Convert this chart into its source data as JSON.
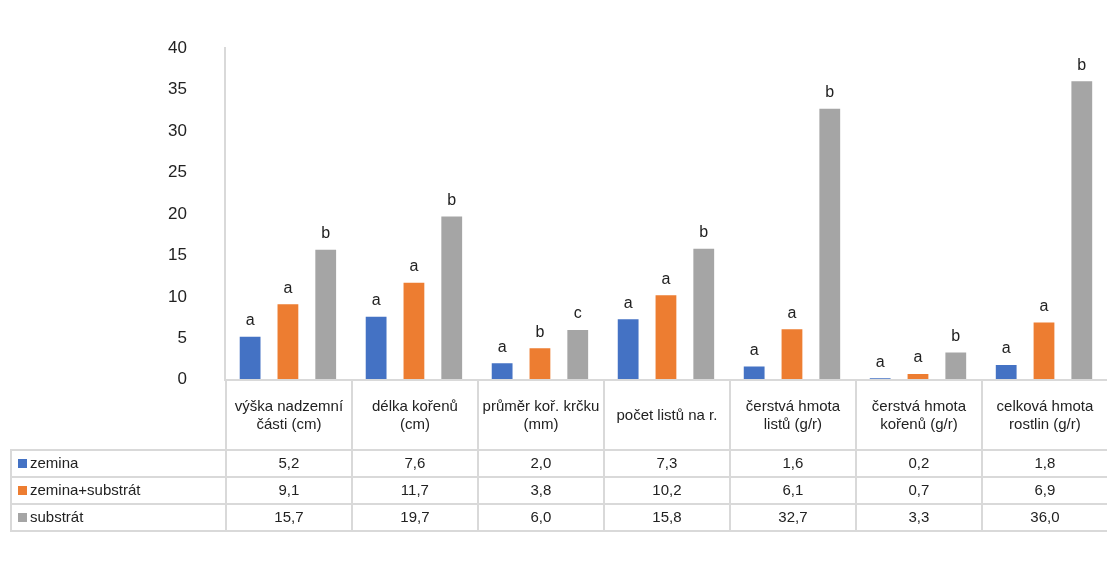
{
  "chart_data": {
    "type": "bar",
    "categories": [
      "výška nadzemní části (cm)",
      "délka kořenů (cm)",
      "průměr koř. krčku (mm)",
      "počet listů na r.",
      "čerstvá hmota listů (g/r)",
      "čerstvá hmota kořenů (g/r)",
      "celková hmota rostlin (g/r)"
    ],
    "series": [
      {
        "name": "zemina",
        "color": "#4472c4",
        "values": [
          5.2,
          7.6,
          2.0,
          7.3,
          1.6,
          0.2,
          1.8
        ],
        "value_labels": [
          "5,2",
          "7,6",
          "2,0",
          "7,3",
          "1,6",
          "0,2",
          "1,8"
        ]
      },
      {
        "name": "zemina+substrát",
        "color": "#ed7d31",
        "values": [
          9.1,
          11.7,
          3.8,
          10.2,
          6.1,
          0.7,
          6.9
        ],
        "value_labels": [
          "9,1",
          "11,7",
          "3,8",
          "10,2",
          "6,1",
          "0,7",
          "6,9"
        ]
      },
      {
        "name": "substrát",
        "color": "#a5a5a5",
        "values": [
          15.7,
          19.7,
          6.0,
          15.8,
          32.7,
          3.3,
          36.0
        ],
        "value_labels": [
          "15,7",
          "19,7",
          "6,0",
          "15,8",
          "32,7",
          "3,3",
          "36,0"
        ]
      }
    ],
    "ylim": [
      0,
      40
    ],
    "yticks": [
      0,
      5,
      10,
      15,
      20,
      25,
      30,
      35,
      40
    ],
    "grid": false,
    "legend": "bottom",
    "annotations": [
      "a",
      "a",
      "b",
      "a",
      "a",
      "b",
      "a",
      "b",
      "c",
      "a",
      "a",
      "b",
      "a",
      "a",
      "b",
      "a",
      "a",
      "b",
      "a",
      "a",
      "b"
    ]
  }
}
